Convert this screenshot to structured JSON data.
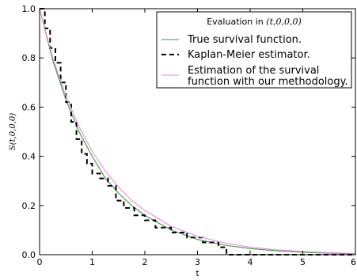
{
  "chart_data": {
    "type": "line",
    "xlabel": "t",
    "ylabel": "S(t,0,0,0)",
    "xlim": [
      0,
      6
    ],
    "ylim": [
      0,
      1.0
    ],
    "x_ticks": [
      "0",
      "1",
      "2",
      "3",
      "4",
      "5",
      "6"
    ],
    "y_ticks": [
      "0.0",
      "0.2",
      "0.4",
      "0.6",
      "0.8",
      "1.0"
    ],
    "grid": false,
    "legend": {
      "title_prefix": "Evaluation in ",
      "title_math": "(t,0,0,0)",
      "placement": "top-right"
    },
    "series": [
      {
        "name": "True survival function.",
        "color": "#3a9a3a",
        "style": "solid",
        "x": [
          0,
          0.25,
          0.5,
          0.75,
          1.0,
          1.25,
          1.5,
          1.75,
          2.0,
          2.5,
          3.0,
          3.5,
          4.0,
          4.5,
          5.0,
          5.5,
          6.0
        ],
        "y": [
          1.0,
          0.79,
          0.63,
          0.5,
          0.4,
          0.31,
          0.25,
          0.2,
          0.16,
          0.1,
          0.062,
          0.039,
          0.025,
          0.016,
          0.01,
          0.006,
          0.004
        ]
      },
      {
        "name": "Kaplan-Meier estimator.",
        "color": "#000000",
        "style": "dashed",
        "step": true,
        "x": [
          0,
          0.1,
          0.2,
          0.3,
          0.4,
          0.5,
          0.6,
          0.7,
          0.8,
          0.9,
          1.0,
          1.15,
          1.3,
          1.45,
          1.6,
          1.8,
          2.0,
          2.2,
          2.5,
          2.8,
          3.1,
          3.4,
          3.55,
          6.0
        ],
        "y": [
          1.0,
          0.92,
          0.84,
          0.78,
          0.7,
          0.62,
          0.54,
          0.47,
          0.41,
          0.37,
          0.33,
          0.31,
          0.28,
          0.22,
          0.19,
          0.16,
          0.14,
          0.11,
          0.09,
          0.07,
          0.05,
          0.03,
          0.0,
          0.0
        ]
      },
      {
        "name": "Estimation of the survival function with our methodology.",
        "name_lines": [
          "Estimation of the survival",
          "function with our methodology."
        ],
        "color": "#e88be8",
        "style": "solid",
        "x": [
          0,
          0.25,
          0.5,
          0.75,
          1.0,
          1.25,
          1.5,
          1.75,
          2.0,
          2.5,
          3.0,
          3.5,
          4.0,
          4.5,
          5.0,
          5.5,
          6.0
        ],
        "y": [
          1.0,
          0.8,
          0.645,
          0.52,
          0.42,
          0.34,
          0.275,
          0.22,
          0.18,
          0.115,
          0.075,
          0.048,
          0.031,
          0.02,
          0.013,
          0.008,
          0.005
        ]
      }
    ]
  }
}
